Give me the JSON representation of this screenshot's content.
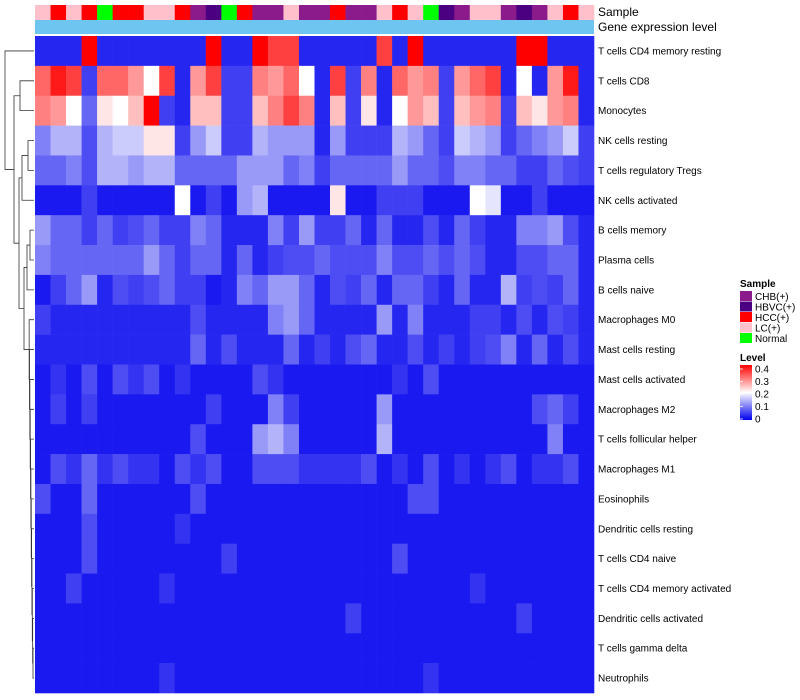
{
  "chart_data": {
    "type": "heatmap",
    "title": "",
    "annotation_tracks": [
      "Sample",
      "Gene expression level"
    ],
    "rows": [
      "T cells CD4 memory resting",
      "T cells CD8",
      "Monocytes",
      "NK cells resting",
      "T cells regulatory  Tregs",
      "NK cells activated",
      "B cells memory",
      "Plasma cells",
      "B cells naive",
      "Macrophages M0",
      "Mast cells resting",
      "Mast cells activated",
      "Macrophages M2",
      "T cells follicular helper",
      "Macrophages M1",
      "Eosinophils",
      "Dendritic cells resting",
      "T cells CD4 naive",
      "T cells CD4 memory activated",
      "Dendritic cells activated",
      "T cells gamma delta",
      "Neutrophils"
    ],
    "sample_groups": [
      "LC(+)",
      "HCC(+)",
      "LC(+)",
      "HCC(+)",
      "Normal",
      "HCC(+)",
      "HCC(+)",
      "LC(+)",
      "LC(+)",
      "HCC(+)",
      "CHB(+)",
      "HBVC(+)",
      "Normal",
      "HCC(+)",
      "CHB(+)",
      "CHB(+)",
      "LC(+)",
      "CHB(+)",
      "CHB(+)",
      "HCC(+)",
      "CHB(+)",
      "CHB(+)",
      "LC(+)",
      "HCC(+)",
      "LC(+)",
      "Normal",
      "HBVC(+)",
      "CHB(+)",
      "LC(+)",
      "LC(+)",
      "CHB(+)",
      "HBVC(+)",
      "CHB(+)",
      "LC(+)",
      "HCC(+)",
      "LC(+)"
    ],
    "values": [
      [
        0.03,
        0.03,
        0.03,
        0.4,
        0.03,
        0.03,
        0.03,
        0.03,
        0.03,
        0.03,
        0.03,
        0.4,
        0.03,
        0.03,
        0.4,
        0.35,
        0.35,
        0.03,
        0.03,
        0.03,
        0.03,
        0.03,
        0.35,
        0.03,
        0.4,
        0.03,
        0.03,
        0.03,
        0.03,
        0.03,
        0.03,
        0.4,
        0.4,
        0.03,
        0.03,
        0.03
      ],
      [
        0.32,
        0.38,
        0.35,
        0.05,
        0.32,
        0.32,
        0.28,
        0.2,
        0.35,
        0.03,
        0.28,
        0.35,
        0.05,
        0.05,
        0.3,
        0.28,
        0.32,
        0.2,
        0.03,
        0.35,
        0.05,
        0.3,
        0.03,
        0.32,
        0.28,
        0.3,
        0.05,
        0.28,
        0.32,
        0.35,
        0.03,
        0.2,
        0.03,
        0.28,
        0.38,
        0.03
      ],
      [
        0.3,
        0.28,
        0.2,
        0.08,
        0.22,
        0.2,
        0.25,
        0.4,
        0.05,
        0.03,
        0.25,
        0.25,
        0.05,
        0.05,
        0.25,
        0.3,
        0.35,
        0.3,
        0.03,
        0.25,
        0.05,
        0.22,
        0.03,
        0.2,
        0.28,
        0.25,
        0.05,
        0.25,
        0.28,
        0.3,
        0.05,
        0.25,
        0.22,
        0.28,
        0.3,
        0.03
      ],
      [
        0.1,
        0.14,
        0.14,
        0.06,
        0.14,
        0.16,
        0.16,
        0.22,
        0.22,
        0.05,
        0.12,
        0.16,
        0.05,
        0.05,
        0.14,
        0.12,
        0.12,
        0.12,
        0.03,
        0.12,
        0.05,
        0.05,
        0.05,
        0.14,
        0.12,
        0.08,
        0.05,
        0.16,
        0.14,
        0.12,
        0.05,
        0.08,
        0.1,
        0.12,
        0.16,
        0.05
      ],
      [
        0.08,
        0.08,
        0.1,
        0.06,
        0.14,
        0.14,
        0.12,
        0.14,
        0.14,
        0.08,
        0.08,
        0.08,
        0.08,
        0.12,
        0.12,
        0.12,
        0.08,
        0.1,
        0.05,
        0.08,
        0.08,
        0.08,
        0.08,
        0.12,
        0.08,
        0.08,
        0.06,
        0.1,
        0.1,
        0.08,
        0.08,
        0.05,
        0.05,
        0.08,
        0.06,
        0.05
      ],
      [
        0.02,
        0.02,
        0.02,
        0.05,
        0.02,
        0.02,
        0.02,
        0.02,
        0.02,
        0.2,
        0.02,
        0.05,
        0.02,
        0.12,
        0.14,
        0.02,
        0.02,
        0.02,
        0.02,
        0.22,
        0.02,
        0.02,
        0.05,
        0.05,
        0.05,
        0.02,
        0.02,
        0.02,
        0.2,
        0.18,
        0.02,
        0.02,
        0.05,
        0.02,
        0.02,
        0.02
      ],
      [
        0.12,
        0.08,
        0.08,
        0.05,
        0.08,
        0.05,
        0.06,
        0.08,
        0.05,
        0.05,
        0.1,
        0.08,
        0.03,
        0.03,
        0.03,
        0.1,
        0.05,
        0.12,
        0.05,
        0.05,
        0.08,
        0.03,
        0.08,
        0.03,
        0.03,
        0.06,
        0.03,
        0.08,
        0.05,
        0.03,
        0.03,
        0.1,
        0.1,
        0.12,
        0.06,
        0.03
      ],
      [
        0.1,
        0.08,
        0.08,
        0.08,
        0.08,
        0.08,
        0.08,
        0.12,
        0.08,
        0.05,
        0.08,
        0.08,
        0.03,
        0.08,
        0.03,
        0.05,
        0.06,
        0.06,
        0.08,
        0.06,
        0.06,
        0.06,
        0.1,
        0.06,
        0.06,
        0.08,
        0.06,
        0.08,
        0.06,
        0.03,
        0.03,
        0.06,
        0.06,
        0.08,
        0.08,
        0.03
      ],
      [
        0.02,
        0.05,
        0.08,
        0.12,
        0.03,
        0.06,
        0.05,
        0.06,
        0.08,
        0.05,
        0.05,
        0.02,
        0.03,
        0.1,
        0.08,
        0.12,
        0.12,
        0.08,
        0.03,
        0.06,
        0.05,
        0.08,
        0.03,
        0.08,
        0.08,
        0.05,
        0.03,
        0.08,
        0.03,
        0.03,
        0.14,
        0.05,
        0.06,
        0.05,
        0.08,
        0.03
      ],
      [
        0.05,
        0.03,
        0.03,
        0.03,
        0.03,
        0.03,
        0.03,
        0.03,
        0.03,
        0.03,
        0.06,
        0.03,
        0.03,
        0.03,
        0.03,
        0.1,
        0.12,
        0.08,
        0.03,
        0.03,
        0.03,
        0.03,
        0.12,
        0.03,
        0.1,
        0.03,
        0.03,
        0.03,
        0.05,
        0.05,
        0.03,
        0.06,
        0.03,
        0.06,
        0.05,
        0.03
      ],
      [
        0.03,
        0.03,
        0.03,
        0.03,
        0.03,
        0.03,
        0.03,
        0.03,
        0.03,
        0.03,
        0.08,
        0.03,
        0.06,
        0.03,
        0.03,
        0.03,
        0.08,
        0.03,
        0.05,
        0.03,
        0.06,
        0.08,
        0.03,
        0.03,
        0.06,
        0.03,
        0.05,
        0.03,
        0.05,
        0.06,
        0.1,
        0.03,
        0.08,
        0.03,
        0.06,
        0.03
      ],
      [
        0.02,
        0.04,
        0.02,
        0.06,
        0.02,
        0.06,
        0.04,
        0.06,
        0.02,
        0.04,
        0.02,
        0.02,
        0.02,
        0.02,
        0.06,
        0.04,
        0.02,
        0.02,
        0.02,
        0.02,
        0.02,
        0.02,
        0.02,
        0.04,
        0.02,
        0.06,
        0.02,
        0.02,
        0.02,
        0.02,
        0.02,
        0.02,
        0.02,
        0.02,
        0.02,
        0.02
      ],
      [
        0.02,
        0.05,
        0.02,
        0.05,
        0.02,
        0.02,
        0.02,
        0.02,
        0.02,
        0.02,
        0.02,
        0.05,
        0.02,
        0.02,
        0.02,
        0.1,
        0.05,
        0.02,
        0.02,
        0.02,
        0.02,
        0.02,
        0.12,
        0.02,
        0.02,
        0.02,
        0.02,
        0.02,
        0.02,
        0.02,
        0.02,
        0.02,
        0.06,
        0.08,
        0.05,
        0.02
      ],
      [
        0.02,
        0.02,
        0.02,
        0.02,
        0.02,
        0.02,
        0.02,
        0.02,
        0.02,
        0.02,
        0.06,
        0.02,
        0.02,
        0.02,
        0.12,
        0.14,
        0.1,
        0.02,
        0.02,
        0.02,
        0.02,
        0.02,
        0.14,
        0.02,
        0.02,
        0.02,
        0.02,
        0.02,
        0.02,
        0.02,
        0.02,
        0.02,
        0.02,
        0.1,
        0.02,
        0.02
      ],
      [
        0.02,
        0.06,
        0.04,
        0.08,
        0.04,
        0.06,
        0.04,
        0.04,
        0.02,
        0.06,
        0.04,
        0.06,
        0.02,
        0.02,
        0.06,
        0.06,
        0.06,
        0.04,
        0.04,
        0.04,
        0.04,
        0.06,
        0.02,
        0.04,
        0.02,
        0.06,
        0.02,
        0.04,
        0.02,
        0.04,
        0.06,
        0.02,
        0.04,
        0.04,
        0.06,
        0.02
      ],
      [
        0.06,
        0.02,
        0.02,
        0.08,
        0.02,
        0.02,
        0.02,
        0.02,
        0.02,
        0.02,
        0.06,
        0.02,
        0.02,
        0.02,
        0.02,
        0.02,
        0.02,
        0.02,
        0.02,
        0.02,
        0.02,
        0.02,
        0.02,
        0.02,
        0.06,
        0.06,
        0.02,
        0.02,
        0.02,
        0.02,
        0.02,
        0.02,
        0.02,
        0.02,
        0.02,
        0.02
      ],
      [
        0.02,
        0.02,
        0.02,
        0.06,
        0.02,
        0.02,
        0.02,
        0.02,
        0.02,
        0.04,
        0.02,
        0.02,
        0.02,
        0.02,
        0.02,
        0.02,
        0.02,
        0.02,
        0.02,
        0.02,
        0.02,
        0.02,
        0.02,
        0.02,
        0.02,
        0.02,
        0.02,
        0.02,
        0.02,
        0.02,
        0.02,
        0.02,
        0.02,
        0.02,
        0.02,
        0.02
      ],
      [
        0.02,
        0.02,
        0.02,
        0.06,
        0.02,
        0.02,
        0.02,
        0.02,
        0.02,
        0.02,
        0.02,
        0.02,
        0.05,
        0.02,
        0.02,
        0.02,
        0.02,
        0.02,
        0.02,
        0.02,
        0.02,
        0.02,
        0.02,
        0.06,
        0.02,
        0.02,
        0.02,
        0.02,
        0.02,
        0.02,
        0.02,
        0.02,
        0.02,
        0.02,
        0.02,
        0.02
      ],
      [
        0.02,
        0.02,
        0.05,
        0.02,
        0.02,
        0.02,
        0.02,
        0.02,
        0.04,
        0.02,
        0.02,
        0.02,
        0.02,
        0.02,
        0.02,
        0.02,
        0.02,
        0.02,
        0.02,
        0.02,
        0.02,
        0.02,
        0.02,
        0.02,
        0.02,
        0.02,
        0.02,
        0.02,
        0.04,
        0.02,
        0.02,
        0.02,
        0.02,
        0.02,
        0.02,
        0.02
      ],
      [
        0.02,
        0.02,
        0.02,
        0.02,
        0.02,
        0.02,
        0.02,
        0.02,
        0.02,
        0.02,
        0.02,
        0.02,
        0.02,
        0.02,
        0.02,
        0.02,
        0.02,
        0.02,
        0.02,
        0.02,
        0.05,
        0.02,
        0.02,
        0.02,
        0.02,
        0.02,
        0.02,
        0.02,
        0.02,
        0.02,
        0.02,
        0.05,
        0.02,
        0.02,
        0.02,
        0.02
      ],
      [
        0.02,
        0.02,
        0.02,
        0.02,
        0.02,
        0.02,
        0.02,
        0.02,
        0.02,
        0.02,
        0.02,
        0.02,
        0.02,
        0.02,
        0.02,
        0.02,
        0.02,
        0.02,
        0.02,
        0.02,
        0.02,
        0.02,
        0.02,
        0.02,
        0.02,
        0.02,
        0.02,
        0.02,
        0.02,
        0.02,
        0.02,
        0.02,
        0.02,
        0.02,
        0.02,
        0.02
      ],
      [
        0.02,
        0.02,
        0.02,
        0.02,
        0.02,
        0.02,
        0.02,
        0.02,
        0.04,
        0.02,
        0.02,
        0.02,
        0.02,
        0.02,
        0.02,
        0.02,
        0.02,
        0.02,
        0.02,
        0.02,
        0.02,
        0.02,
        0.02,
        0.02,
        0.02,
        0.04,
        0.02,
        0.02,
        0.02,
        0.02,
        0.02,
        0.02,
        0.02,
        0.02,
        0.02,
        0.02
      ]
    ],
    "color_scale": {
      "range": [
        0,
        0.4
      ],
      "ticks": [
        "0",
        "0.1",
        "0.2",
        "0.3",
        "0.4"
      ],
      "stops": [
        "#0000ee",
        "#ffffff",
        "#ff0000"
      ]
    },
    "gene_expression_color": "#6ec6f0",
    "legend": {
      "sample_title": "Sample",
      "sample_items": [
        {
          "label": "CHB(+)",
          "color": "#8b1a8b"
        },
        {
          "label": "HBVC(+)",
          "color": "#4b0082"
        },
        {
          "label": "HCC(+)",
          "color": "#ff0000"
        },
        {
          "label": "LC(+)",
          "color": "#ffc0cb"
        },
        {
          "label": "Normal",
          "color": "#00ff00"
        }
      ],
      "level_title": "Level"
    }
  }
}
